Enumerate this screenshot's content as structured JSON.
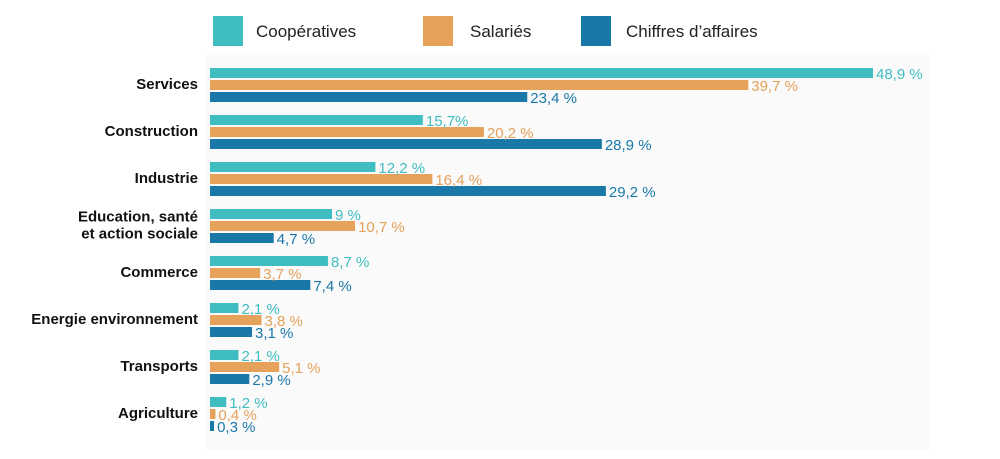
{
  "chart_data": {
    "type": "bar",
    "orientation": "horizontal",
    "categories": [
      "Services",
      "Construction",
      "Industrie",
      "Education, santé\net action sociale",
      "Commerce",
      "Energie environnement",
      "Transports",
      "Agriculture"
    ],
    "series": [
      {
        "name": "Coopératives",
        "color": "#3fbdc1",
        "values": [
          48.9,
          15.7,
          12.2,
          9,
          8.7,
          2.1,
          2.1,
          1.2
        ],
        "labels": [
          "48,9 %",
          "15,7%",
          "12,2 %",
          "9 %",
          "8,7 %",
          "2,1 %",
          "2,1 %",
          "1,2 %"
        ]
      },
      {
        "name": "Salariés",
        "color": "#e6a15a",
        "values": [
          39.7,
          20.2,
          16.4,
          10.7,
          3.7,
          3.8,
          5.1,
          0.4
        ],
        "labels": [
          "39,7 %",
          "20,2 %",
          "16,4 %",
          "10,7 %",
          "3,7 %",
          "3,8 %",
          "5,1 %",
          "0,4 %"
        ]
      },
      {
        "name": "Chiffres d’affaires",
        "color": "#1a78a8",
        "values": [
          23.4,
          28.9,
          29.2,
          4.7,
          7.4,
          3.1,
          2.9,
          0.3
        ],
        "labels": [
          "23,4 %",
          "28,9 %",
          "29,2 %",
          "4,7 %",
          "7,4 %",
          "3,1 %",
          "2,9 %",
          "0,3 %"
        ]
      }
    ],
    "xlim": [
      0,
      50
    ],
    "grid": false,
    "legend_position": "top"
  }
}
